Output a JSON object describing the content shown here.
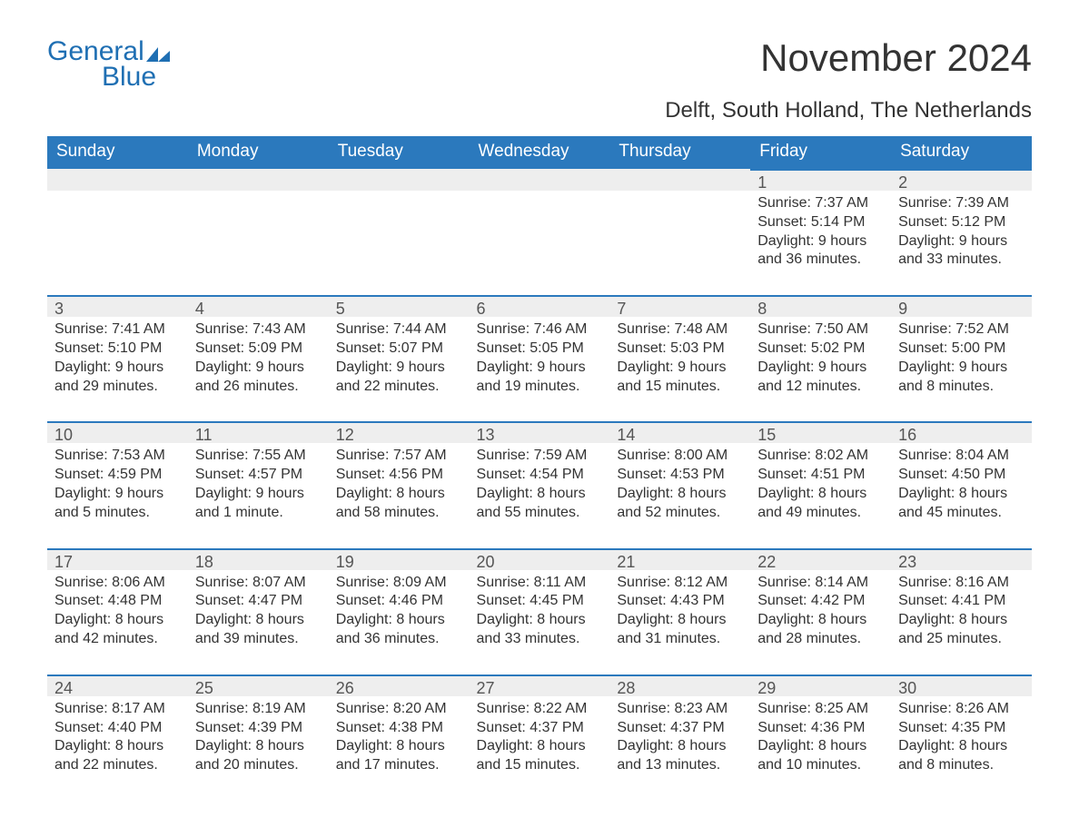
{
  "brand": {
    "word1": "General",
    "word2": "Blue",
    "color": "#1f6fb3"
  },
  "title": "November 2024",
  "location": "Delft, South Holland, The Netherlands",
  "accent_color": "#2b79bd",
  "header_bg": "#2b79bd",
  "header_fg": "#ffffff",
  "daynum_bg": "#eeeeee",
  "border_color": "#2b79bd",
  "text_color": "#333333",
  "background_color": "#ffffff",
  "fonts": {
    "title_size_pt": 32,
    "location_size_pt": 18,
    "header_size_pt": 14,
    "body_size_pt": 12
  },
  "day_headers": [
    "Sunday",
    "Monday",
    "Tuesday",
    "Wednesday",
    "Thursday",
    "Friday",
    "Saturday"
  ],
  "weeks": [
    [
      null,
      null,
      null,
      null,
      null,
      {
        "n": "1",
        "sunrise": "Sunrise: 7:37 AM",
        "sunset": "Sunset: 5:14 PM",
        "dl1": "Daylight: 9 hours",
        "dl2": "and 36 minutes."
      },
      {
        "n": "2",
        "sunrise": "Sunrise: 7:39 AM",
        "sunset": "Sunset: 5:12 PM",
        "dl1": "Daylight: 9 hours",
        "dl2": "and 33 minutes."
      }
    ],
    [
      {
        "n": "3",
        "sunrise": "Sunrise: 7:41 AM",
        "sunset": "Sunset: 5:10 PM",
        "dl1": "Daylight: 9 hours",
        "dl2": "and 29 minutes."
      },
      {
        "n": "4",
        "sunrise": "Sunrise: 7:43 AM",
        "sunset": "Sunset: 5:09 PM",
        "dl1": "Daylight: 9 hours",
        "dl2": "and 26 minutes."
      },
      {
        "n": "5",
        "sunrise": "Sunrise: 7:44 AM",
        "sunset": "Sunset: 5:07 PM",
        "dl1": "Daylight: 9 hours",
        "dl2": "and 22 minutes."
      },
      {
        "n": "6",
        "sunrise": "Sunrise: 7:46 AM",
        "sunset": "Sunset: 5:05 PM",
        "dl1": "Daylight: 9 hours",
        "dl2": "and 19 minutes."
      },
      {
        "n": "7",
        "sunrise": "Sunrise: 7:48 AM",
        "sunset": "Sunset: 5:03 PM",
        "dl1": "Daylight: 9 hours",
        "dl2": "and 15 minutes."
      },
      {
        "n": "8",
        "sunrise": "Sunrise: 7:50 AM",
        "sunset": "Sunset: 5:02 PM",
        "dl1": "Daylight: 9 hours",
        "dl2": "and 12 minutes."
      },
      {
        "n": "9",
        "sunrise": "Sunrise: 7:52 AM",
        "sunset": "Sunset: 5:00 PM",
        "dl1": "Daylight: 9 hours",
        "dl2": "and 8 minutes."
      }
    ],
    [
      {
        "n": "10",
        "sunrise": "Sunrise: 7:53 AM",
        "sunset": "Sunset: 4:59 PM",
        "dl1": "Daylight: 9 hours",
        "dl2": "and 5 minutes."
      },
      {
        "n": "11",
        "sunrise": "Sunrise: 7:55 AM",
        "sunset": "Sunset: 4:57 PM",
        "dl1": "Daylight: 9 hours",
        "dl2": "and 1 minute."
      },
      {
        "n": "12",
        "sunrise": "Sunrise: 7:57 AM",
        "sunset": "Sunset: 4:56 PM",
        "dl1": "Daylight: 8 hours",
        "dl2": "and 58 minutes."
      },
      {
        "n": "13",
        "sunrise": "Sunrise: 7:59 AM",
        "sunset": "Sunset: 4:54 PM",
        "dl1": "Daylight: 8 hours",
        "dl2": "and 55 minutes."
      },
      {
        "n": "14",
        "sunrise": "Sunrise: 8:00 AM",
        "sunset": "Sunset: 4:53 PM",
        "dl1": "Daylight: 8 hours",
        "dl2": "and 52 minutes."
      },
      {
        "n": "15",
        "sunrise": "Sunrise: 8:02 AM",
        "sunset": "Sunset: 4:51 PM",
        "dl1": "Daylight: 8 hours",
        "dl2": "and 49 minutes."
      },
      {
        "n": "16",
        "sunrise": "Sunrise: 8:04 AM",
        "sunset": "Sunset: 4:50 PM",
        "dl1": "Daylight: 8 hours",
        "dl2": "and 45 minutes."
      }
    ],
    [
      {
        "n": "17",
        "sunrise": "Sunrise: 8:06 AM",
        "sunset": "Sunset: 4:48 PM",
        "dl1": "Daylight: 8 hours",
        "dl2": "and 42 minutes."
      },
      {
        "n": "18",
        "sunrise": "Sunrise: 8:07 AM",
        "sunset": "Sunset: 4:47 PM",
        "dl1": "Daylight: 8 hours",
        "dl2": "and 39 minutes."
      },
      {
        "n": "19",
        "sunrise": "Sunrise: 8:09 AM",
        "sunset": "Sunset: 4:46 PM",
        "dl1": "Daylight: 8 hours",
        "dl2": "and 36 minutes."
      },
      {
        "n": "20",
        "sunrise": "Sunrise: 8:11 AM",
        "sunset": "Sunset: 4:45 PM",
        "dl1": "Daylight: 8 hours",
        "dl2": "and 33 minutes."
      },
      {
        "n": "21",
        "sunrise": "Sunrise: 8:12 AM",
        "sunset": "Sunset: 4:43 PM",
        "dl1": "Daylight: 8 hours",
        "dl2": "and 31 minutes."
      },
      {
        "n": "22",
        "sunrise": "Sunrise: 8:14 AM",
        "sunset": "Sunset: 4:42 PM",
        "dl1": "Daylight: 8 hours",
        "dl2": "and 28 minutes."
      },
      {
        "n": "23",
        "sunrise": "Sunrise: 8:16 AM",
        "sunset": "Sunset: 4:41 PM",
        "dl1": "Daylight: 8 hours",
        "dl2": "and 25 minutes."
      }
    ],
    [
      {
        "n": "24",
        "sunrise": "Sunrise: 8:17 AM",
        "sunset": "Sunset: 4:40 PM",
        "dl1": "Daylight: 8 hours",
        "dl2": "and 22 minutes."
      },
      {
        "n": "25",
        "sunrise": "Sunrise: 8:19 AM",
        "sunset": "Sunset: 4:39 PM",
        "dl1": "Daylight: 8 hours",
        "dl2": "and 20 minutes."
      },
      {
        "n": "26",
        "sunrise": "Sunrise: 8:20 AM",
        "sunset": "Sunset: 4:38 PM",
        "dl1": "Daylight: 8 hours",
        "dl2": "and 17 minutes."
      },
      {
        "n": "27",
        "sunrise": "Sunrise: 8:22 AM",
        "sunset": "Sunset: 4:37 PM",
        "dl1": "Daylight: 8 hours",
        "dl2": "and 15 minutes."
      },
      {
        "n": "28",
        "sunrise": "Sunrise: 8:23 AM",
        "sunset": "Sunset: 4:37 PM",
        "dl1": "Daylight: 8 hours",
        "dl2": "and 13 minutes."
      },
      {
        "n": "29",
        "sunrise": "Sunrise: 8:25 AM",
        "sunset": "Sunset: 4:36 PM",
        "dl1": "Daylight: 8 hours",
        "dl2": "and 10 minutes."
      },
      {
        "n": "30",
        "sunrise": "Sunrise: 8:26 AM",
        "sunset": "Sunset: 4:35 PM",
        "dl1": "Daylight: 8 hours",
        "dl2": "and 8 minutes."
      }
    ]
  ]
}
